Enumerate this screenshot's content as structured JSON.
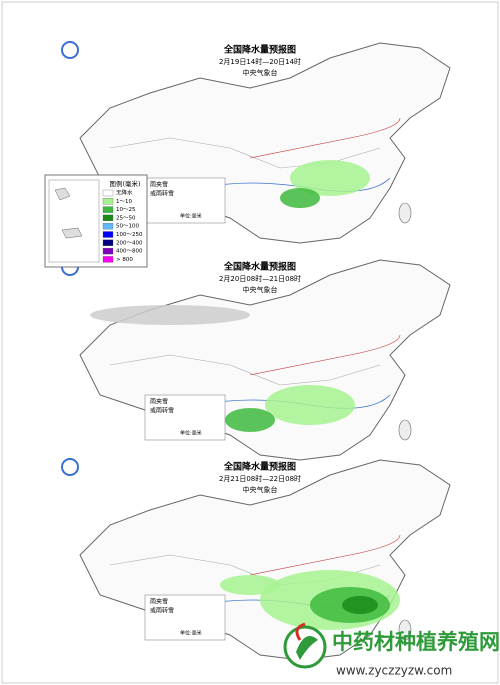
{
  "maps": [
    {
      "title": "全国降水量预报图",
      "time": "2月19日14时—20日14时",
      "agency": "中央气象台"
    },
    {
      "title": "全国降水量预报图",
      "time": "2月20日08时—21日08时",
      "agency": "中央气象台"
    },
    {
      "title": "全国降水量预报图",
      "time": "2月21日08时—22日08时",
      "agency": "中央气象台"
    }
  ],
  "legend": {
    "title": "图例(毫米)",
    "items": [
      {
        "label": "无降水",
        "color": "#ffffff"
      },
      {
        "label": "1～10",
        "color": "#a6f28f"
      },
      {
        "label": "10～25",
        "color": "#3dba3d"
      },
      {
        "label": "25～50",
        "color": "#1a8a1a"
      },
      {
        "label": "50～100",
        "color": "#61b8ff"
      },
      {
        "label": "100～250",
        "color": "#0000ff"
      },
      {
        "label": "200～400",
        "color": "#000080"
      },
      {
        "label": "400～800",
        "color": "#8000c0"
      },
      {
        "label": "> 800",
        "color": "#fa00fa"
      }
    ]
  },
  "snow_legend": {
    "sleet": "雨夹雪",
    "rain_to_snow": "或雨转雪",
    "unit": "单位:毫米"
  },
  "watermark": {
    "name": "中药材种植养殖网",
    "url": "www.zyczzyzw.com"
  }
}
